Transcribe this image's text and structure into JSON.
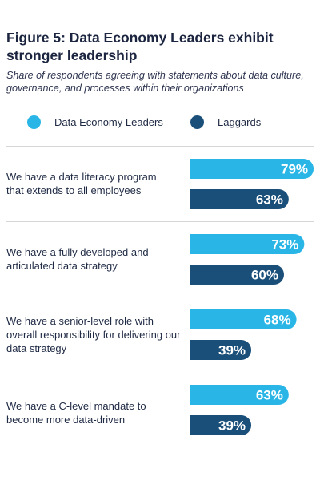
{
  "header": {
    "title": "Figure 5: Data Economy Leaders exhibit stronger leadership",
    "subtitle": "Share of respondents agreeing with statements about data culture, governance, and processes within their organizations"
  },
  "colors": {
    "leaders": "#29b6e6",
    "laggards": "#1a4f7a"
  },
  "chart_data": {
    "type": "bar",
    "orientation": "horizontal",
    "title": "Figure 5: Data Economy Leaders exhibit stronger leadership",
    "subtitle": "Share of respondents agreeing with statements about data culture, governance, and processes within their organizations",
    "legend_placement": "top",
    "grid": false,
    "value_unit": "%",
    "categories": [
      "We have a data literacy program that extends to all employees",
      "We have a fully developed and articulated data strategy",
      "We have a senior-level role with overall responsibility for delivering our data strategy",
      "We have a C-level mandate to become more data-driven"
    ],
    "series": [
      {
        "name": "Data Economy Leaders",
        "values": [
          79,
          73,
          68,
          63
        ],
        "labels": [
          "79%",
          "73%",
          "68%",
          "63%"
        ]
      },
      {
        "name": "Laggards",
        "values": [
          63,
          60,
          39,
          39
        ],
        "labels": [
          "63%",
          "60%",
          "39%",
          "39%"
        ]
      }
    ]
  }
}
